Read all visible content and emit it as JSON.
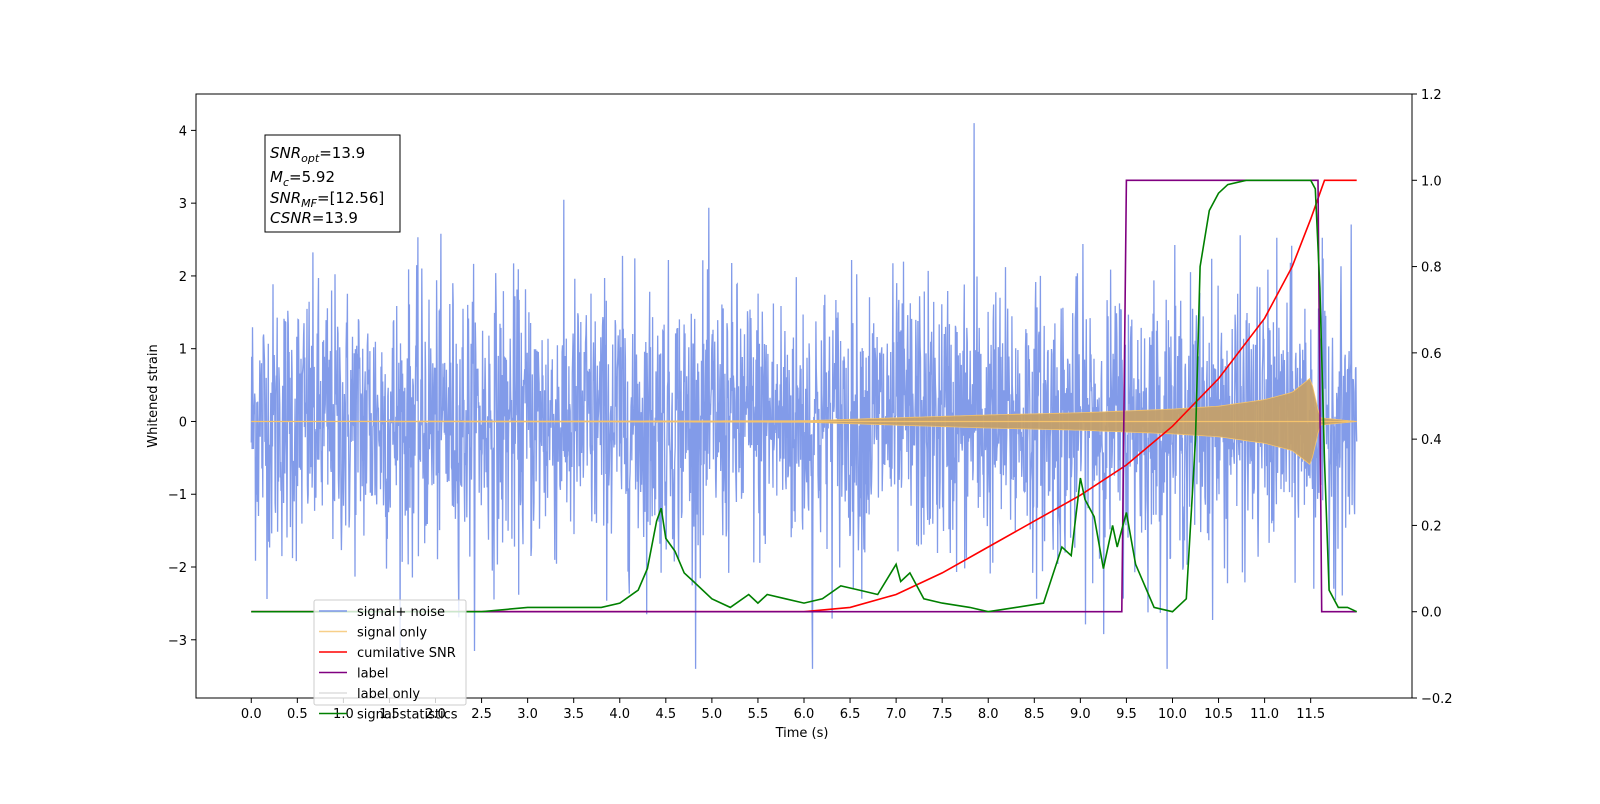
{
  "chart_data": {
    "type": "line",
    "title": "",
    "xlabel": "Time (s)",
    "ylabel_left": "Whitened strain",
    "ylabel_right": "",
    "xlim": [
      -0.6,
      12.6
    ],
    "ylim_left": [
      -3.8,
      4.5
    ],
    "ylim_right": [
      -0.2,
      1.2
    ],
    "x_ticks": [
      0.0,
      0.5,
      1.0,
      1.5,
      2.0,
      2.5,
      3.0,
      3.5,
      4.0,
      4.5,
      5.0,
      5.5,
      6.0,
      6.5,
      7.0,
      7.5,
      8.0,
      8.5,
      9.0,
      9.5,
      10.0,
      10.5,
      11.0,
      11.5
    ],
    "x_tick_labels": [
      "0.0",
      "0.5",
      "1.0",
      "1.5",
      "2.0",
      "2.5",
      "3.0",
      "3.5",
      "4.0",
      "4.5",
      "5.0",
      "5.5",
      "6.0",
      "6.5",
      "7.0",
      "7.5",
      "8.0",
      "8.5",
      "9.0",
      "9.5",
      "10.0",
      "10.5",
      "11.0",
      "11.5"
    ],
    "y_left_ticks": [
      -3,
      -2,
      -1,
      0,
      1,
      2,
      3,
      4
    ],
    "y_left_tick_labels": [
      "−3",
      "−2",
      "−1",
      "0",
      "1",
      "2",
      "3",
      "4"
    ],
    "y_right_ticks": [
      -0.2,
      0.0,
      0.2,
      0.4,
      0.6,
      0.8,
      1.0,
      1.2
    ],
    "y_right_tick_labels": [
      "−0.2",
      "0.0",
      "0.2",
      "0.4",
      "0.6",
      "0.8",
      "1.0",
      "1.2"
    ],
    "grid": false,
    "legend_position": "lower-left",
    "annotation": {
      "lines": [
        {
          "main": "SNR",
          "sub": "opt",
          "rest": "=13.9"
        },
        {
          "main": "M",
          "sub": "c",
          "rest": "=5.92"
        },
        {
          "main": "SNR",
          "sub": "MF",
          "rest": "=[12.56]"
        },
        {
          "main": "CSNR",
          "sub": "",
          "rest": "=13.9"
        }
      ]
    },
    "series": [
      {
        "name": "signal+ noise",
        "axis": "left",
        "color": "#7b96e8",
        "kind": "noise",
        "x_range": [
          0.0,
          12.0
        ],
        "typical_amplitude": 1.5,
        "max": 4.1,
        "min": -3.4
      },
      {
        "name": "signal only",
        "axis": "left",
        "color": "#f5c36b",
        "kind": "chirp",
        "x_range": [
          0.0,
          12.0
        ],
        "envelope_x": [
          0.0,
          6.0,
          7.0,
          8.0,
          9.0,
          10.0,
          10.5,
          11.0,
          11.3,
          11.5,
          11.6,
          12.0
        ],
        "envelope_y": [
          0.0,
          0.01,
          0.05,
          0.09,
          0.12,
          0.17,
          0.21,
          0.3,
          0.4,
          0.6,
          0.05,
          0.0
        ]
      },
      {
        "name": "cumilative SNR",
        "axis": "right",
        "color": "#ff0000",
        "x": [
          0.0,
          6.0,
          6.5,
          7.0,
          7.5,
          8.0,
          8.5,
          9.0,
          9.5,
          10.0,
          10.5,
          11.0,
          11.3,
          11.5,
          11.6,
          11.65,
          12.0
        ],
        "y": [
          0.0,
          0.0,
          0.01,
          0.04,
          0.09,
          0.15,
          0.21,
          0.27,
          0.34,
          0.43,
          0.54,
          0.68,
          0.8,
          0.91,
          0.97,
          1.0,
          1.0
        ]
      },
      {
        "name": "label",
        "axis": "right",
        "color": "#800080",
        "x": [
          0.0,
          9.45,
          9.5,
          11.58,
          11.62,
          12.0
        ],
        "y": [
          0.0,
          0.0,
          1.0,
          1.0,
          0.0,
          0.0
        ]
      },
      {
        "name": "label only",
        "axis": "right",
        "color": "#cccccc",
        "hidden": true,
        "x": [],
        "y": []
      },
      {
        "name": "signal statistics",
        "axis": "right",
        "color": "#008000",
        "x": [
          0.0,
          2.5,
          3.0,
          3.5,
          3.8,
          4.0,
          4.2,
          4.3,
          4.4,
          4.45,
          4.5,
          4.6,
          4.7,
          4.8,
          5.0,
          5.2,
          5.4,
          5.5,
          5.6,
          5.8,
          6.0,
          6.2,
          6.4,
          6.6,
          6.8,
          7.0,
          7.05,
          7.15,
          7.3,
          7.5,
          7.8,
          8.0,
          8.3,
          8.6,
          8.8,
          8.9,
          9.0,
          9.05,
          9.15,
          9.25,
          9.35,
          9.4,
          9.5,
          9.6,
          9.8,
          10.0,
          10.15,
          10.25,
          10.3,
          10.4,
          10.5,
          10.6,
          10.8,
          11.0,
          11.5,
          11.55,
          11.6,
          11.65,
          11.7,
          11.8,
          11.9,
          12.0
        ],
        "y": [
          0.0,
          0.0,
          0.01,
          0.01,
          0.01,
          0.02,
          0.05,
          0.1,
          0.21,
          0.24,
          0.17,
          0.14,
          0.09,
          0.07,
          0.03,
          0.01,
          0.04,
          0.02,
          0.04,
          0.03,
          0.02,
          0.03,
          0.06,
          0.05,
          0.04,
          0.11,
          0.07,
          0.09,
          0.03,
          0.02,
          0.01,
          0.0,
          0.01,
          0.02,
          0.15,
          0.13,
          0.31,
          0.26,
          0.22,
          0.1,
          0.2,
          0.15,
          0.23,
          0.11,
          0.01,
          0.0,
          0.03,
          0.4,
          0.8,
          0.93,
          0.97,
          0.99,
          1.0,
          1.0,
          1.0,
          0.98,
          0.75,
          0.35,
          0.05,
          0.01,
          0.01,
          0.0
        ]
      }
    ]
  }
}
